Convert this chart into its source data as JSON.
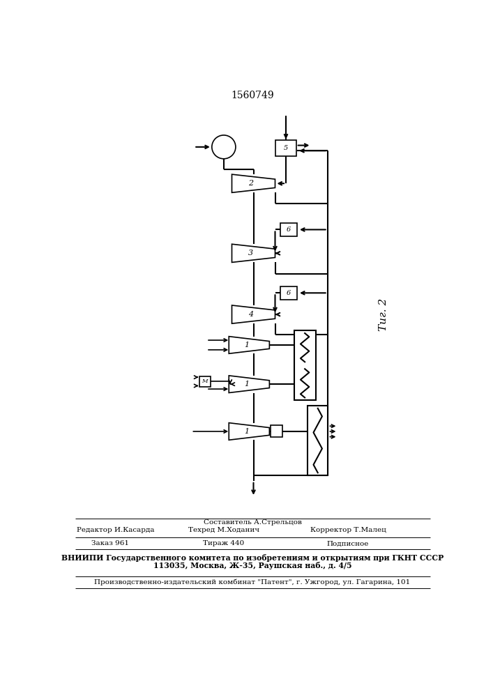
{
  "patent_number": "1560749",
  "fig_label": "Τиг. 2",
  "bg_color": "#ffffff",
  "line_color": "#000000",
  "editor_line1": "Составитель А.Стрельцов",
  "editor_line2_left": "Редактор И.Касарда",
  "editor_line2_mid": "Техред М.Ходанич",
  "editor_line2_right": "Корректор Т.Малец",
  "editor_line3_left": "Заказ 961",
  "editor_line3_mid": "Тираж 440",
  "editor_line3_right": "Подписное",
  "editor_line4": "ВНИИПИ Государственного комитета по изобретениям и открытиям при ГКНТ СССР",
  "editor_line5": "113035, Москва, Ж-35, Раушская наб., д. 4/5",
  "editor_line6": "Производственно-издательский комбинат \"Патент\", г. Ужгород, ул. Гагарина, 101"
}
